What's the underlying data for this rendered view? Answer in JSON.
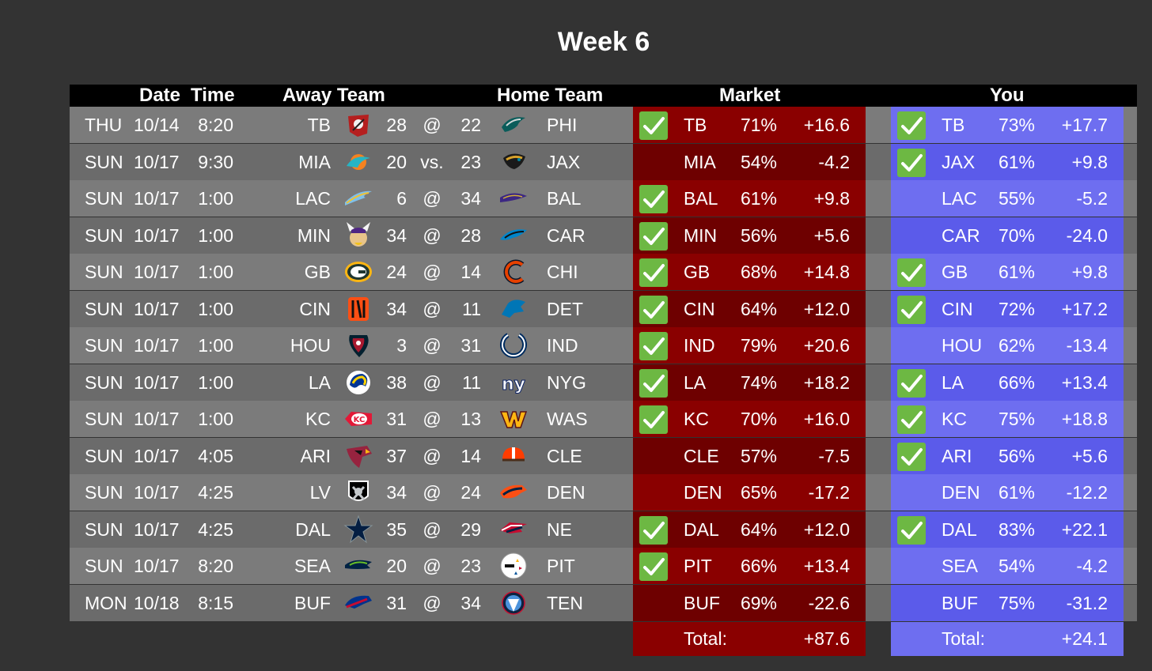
{
  "title": "Week 6",
  "headers": {
    "date": "Date",
    "time": "Time",
    "away": "Away Team",
    "home": "Home Team",
    "market": "Market",
    "you": "You"
  },
  "colors": {
    "background": "#333333",
    "market_bg": "#8a0000",
    "you_bg": "#6e6ef0",
    "check_green": "#6db843"
  },
  "games": [
    {
      "day": "THU",
      "date": "10/14",
      "time": "8:20",
      "away": "TB",
      "away_logo": "buccaneers-icon",
      "away_score": "28",
      "sep": "@",
      "home_score": "22",
      "home_logo": "eagles-icon",
      "home": "PHI",
      "market": {
        "checked": true,
        "team": "TB",
        "pct": "71%",
        "val": "+16.6"
      },
      "you": {
        "checked": true,
        "team": "TB",
        "pct": "73%",
        "val": "+17.7"
      }
    },
    {
      "day": "SUN",
      "date": "10/17",
      "time": "9:30",
      "away": "MIA",
      "away_logo": "dolphins-icon",
      "away_score": "20",
      "sep": "vs.",
      "home_score": "23",
      "home_logo": "jaguars-icon",
      "home": "JAX",
      "market": {
        "checked": false,
        "team": "MIA",
        "pct": "54%",
        "val": "-4.2"
      },
      "you": {
        "checked": true,
        "team": "JAX",
        "pct": "61%",
        "val": "+9.8"
      }
    },
    {
      "day": "SUN",
      "date": "10/17",
      "time": "1:00",
      "away": "LAC",
      "away_logo": "chargers-icon",
      "away_score": "6",
      "sep": "@",
      "home_score": "34",
      "home_logo": "ravens-icon",
      "home": "BAL",
      "market": {
        "checked": true,
        "team": "BAL",
        "pct": "61%",
        "val": "+9.8"
      },
      "you": {
        "checked": false,
        "team": "LAC",
        "pct": "55%",
        "val": "-5.2"
      }
    },
    {
      "day": "SUN",
      "date": "10/17",
      "time": "1:00",
      "away": "MIN",
      "away_logo": "vikings-icon",
      "away_score": "34",
      "sep": "@",
      "home_score": "28",
      "home_logo": "panthers-icon",
      "home": "CAR",
      "market": {
        "checked": true,
        "team": "MIN",
        "pct": "56%",
        "val": "+5.6"
      },
      "you": {
        "checked": false,
        "team": "CAR",
        "pct": "70%",
        "val": "-24.0"
      }
    },
    {
      "day": "SUN",
      "date": "10/17",
      "time": "1:00",
      "away": "GB",
      "away_logo": "packers-icon",
      "away_score": "24",
      "sep": "@",
      "home_score": "14",
      "home_logo": "bears-icon",
      "home": "CHI",
      "market": {
        "checked": true,
        "team": "GB",
        "pct": "68%",
        "val": "+14.8"
      },
      "you": {
        "checked": true,
        "team": "GB",
        "pct": "61%",
        "val": "+9.8"
      }
    },
    {
      "day": "SUN",
      "date": "10/17",
      "time": "1:00",
      "away": "CIN",
      "away_logo": "bengals-icon",
      "away_score": "34",
      "sep": "@",
      "home_score": "11",
      "home_logo": "lions-icon",
      "home": "DET",
      "market": {
        "checked": true,
        "team": "CIN",
        "pct": "64%",
        "val": "+12.0"
      },
      "you": {
        "checked": true,
        "team": "CIN",
        "pct": "72%",
        "val": "+17.2"
      }
    },
    {
      "day": "SUN",
      "date": "10/17",
      "time": "1:00",
      "away": "HOU",
      "away_logo": "texans-icon",
      "away_score": "3",
      "sep": "@",
      "home_score": "31",
      "home_logo": "colts-icon",
      "home": "IND",
      "market": {
        "checked": true,
        "team": "IND",
        "pct": "79%",
        "val": "+20.6"
      },
      "you": {
        "checked": false,
        "team": "HOU",
        "pct": "62%",
        "val": "-13.4"
      }
    },
    {
      "day": "SUN",
      "date": "10/17",
      "time": "1:00",
      "away": "LA",
      "away_logo": "rams-icon",
      "away_score": "38",
      "sep": "@",
      "home_score": "11",
      "home_logo": "giants-icon",
      "home": "NYG",
      "market": {
        "checked": true,
        "team": "LA",
        "pct": "74%",
        "val": "+18.2"
      },
      "you": {
        "checked": true,
        "team": "LA",
        "pct": "66%",
        "val": "+13.4"
      }
    },
    {
      "day": "SUN",
      "date": "10/17",
      "time": "1:00",
      "away": "KC",
      "away_logo": "chiefs-icon",
      "away_score": "31",
      "sep": "@",
      "home_score": "13",
      "home_logo": "washington-icon",
      "home": "WAS",
      "market": {
        "checked": true,
        "team": "KC",
        "pct": "70%",
        "val": "+16.0"
      },
      "you": {
        "checked": true,
        "team": "KC",
        "pct": "75%",
        "val": "+18.8"
      }
    },
    {
      "day": "SUN",
      "date": "10/17",
      "time": "4:05",
      "away": "ARI",
      "away_logo": "cardinals-icon",
      "away_score": "37",
      "sep": "@",
      "home_score": "14",
      "home_logo": "browns-icon",
      "home": "CLE",
      "market": {
        "checked": false,
        "team": "CLE",
        "pct": "57%",
        "val": "-7.5"
      },
      "you": {
        "checked": true,
        "team": "ARI",
        "pct": "56%",
        "val": "+5.6"
      }
    },
    {
      "day": "SUN",
      "date": "10/17",
      "time": "4:25",
      "away": "LV",
      "away_logo": "raiders-icon",
      "away_score": "34",
      "sep": "@",
      "home_score": "24",
      "home_logo": "broncos-icon",
      "home": "DEN",
      "market": {
        "checked": false,
        "team": "DEN",
        "pct": "65%",
        "val": "-17.2"
      },
      "you": {
        "checked": false,
        "team": "DEN",
        "pct": "61%",
        "val": "-12.2"
      }
    },
    {
      "day": "SUN",
      "date": "10/17",
      "time": "4:25",
      "away": "DAL",
      "away_logo": "cowboys-icon",
      "away_score": "35",
      "sep": "@",
      "home_score": "29",
      "home_logo": "patriots-icon",
      "home": "NE",
      "market": {
        "checked": true,
        "team": "DAL",
        "pct": "64%",
        "val": "+12.0"
      },
      "you": {
        "checked": true,
        "team": "DAL",
        "pct": "83%",
        "val": "+22.1"
      }
    },
    {
      "day": "SUN",
      "date": "10/17",
      "time": "8:20",
      "away": "SEA",
      "away_logo": "seahawks-icon",
      "away_score": "20",
      "sep": "@",
      "home_score": "23",
      "home_logo": "steelers-icon",
      "home": "PIT",
      "market": {
        "checked": true,
        "team": "PIT",
        "pct": "66%",
        "val": "+13.4"
      },
      "you": {
        "checked": false,
        "team": "SEA",
        "pct": "54%",
        "val": "-4.2"
      }
    },
    {
      "day": "MON",
      "date": "10/18",
      "time": "8:15",
      "away": "BUF",
      "away_logo": "bills-icon",
      "away_score": "31",
      "sep": "@",
      "home_score": "34",
      "home_logo": "titans-icon",
      "home": "TEN",
      "market": {
        "checked": false,
        "team": "BUF",
        "pct": "69%",
        "val": "-22.6"
      },
      "you": {
        "checked": false,
        "team": "BUF",
        "pct": "75%",
        "val": "-31.2"
      }
    }
  ],
  "totals": {
    "market_label": "Total:",
    "market_value": "+87.6",
    "you_label": "Total:",
    "you_value": "+24.1"
  }
}
